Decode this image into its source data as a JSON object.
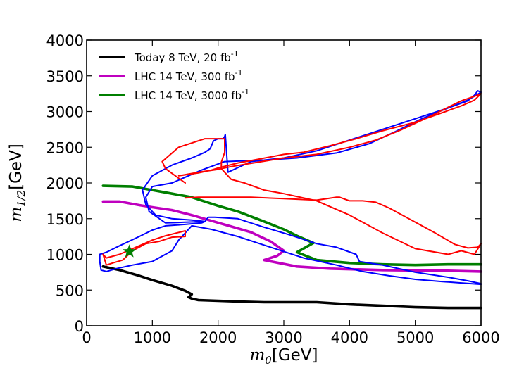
{
  "chart_data": {
    "type": "line",
    "title": "",
    "xlabel": {
      "symbol": "m",
      "subscript": "0",
      "unit": "[GeV]"
    },
    "ylabel": {
      "symbol": "m",
      "subscript": "1/2",
      "unit": "[GeV]"
    },
    "xlim": [
      0,
      6000
    ],
    "ylim": [
      0,
      4000
    ],
    "xticks": [
      0,
      1000,
      2000,
      3000,
      4000,
      5000,
      6000
    ],
    "yticks": [
      0,
      500,
      1000,
      1500,
      2000,
      2500,
      3000,
      3500,
      4000
    ],
    "grid": false,
    "legend_position": "top-left",
    "series": [
      {
        "name": "Today 8 TeV, 20 fb",
        "legend_text": "Today 8 TeV, 20 fb",
        "legend_sup": "-1",
        "color": "#000000",
        "x": [
          250,
          500,
          800,
          1000,
          1300,
          1500,
          1600,
          1550,
          1600,
          1700,
          2000,
          2300,
          2700,
          3500,
          4000,
          4500,
          5000,
          5500,
          6000
        ],
        "y": [
          830,
          780,
          700,
          640,
          560,
          490,
          440,
          400,
          380,
          360,
          350,
          340,
          330,
          330,
          300,
          280,
          260,
          250,
          250
        ]
      },
      {
        "name": "LHC 14 TeV, 300 fb",
        "legend_text": "LHC 14 TeV, 300 fb",
        "legend_sup": "-1",
        "color": "#bf00bf",
        "x": [
          250,
          500,
          800,
          1000,
          1300,
          1600,
          1900,
          2200,
          2500,
          2800,
          3000,
          2900,
          2800,
          2700,
          3200,
          3700,
          4500,
          5500,
          6000
        ],
        "y": [
          1740,
          1740,
          1690,
          1660,
          1620,
          1550,
          1470,
          1390,
          1310,
          1180,
          1050,
          980,
          950,
          920,
          830,
          800,
          780,
          770,
          760
        ]
      },
      {
        "name": "LHC 14 TeV, 3000 fb",
        "legend_text": "LHC 14 TeV, 3000 fb",
        "legend_sup": "-1",
        "color": "#007f00",
        "x": [
          250,
          700,
          1000,
          1300,
          1600,
          1800,
          2000,
          2300,
          2700,
          3000,
          3200,
          3450,
          3200,
          3500,
          4000,
          4500,
          5000,
          5500,
          6000
        ],
        "y": [
          1960,
          1950,
          1900,
          1850,
          1800,
          1740,
          1680,
          1600,
          1460,
          1350,
          1260,
          1160,
          1030,
          920,
          880,
          860,
          850,
          860,
          860
        ]
      },
      {
        "name": "blue contour",
        "color": "#0000ff",
        "x": [
          200,
          300,
          500,
          800,
          1000,
          1200,
          1500,
          1750,
          1800,
          1600,
          1300,
          1050,
          900,
          850,
          1000,
          1300,
          1600,
          1800,
          1880,
          1930,
          2000,
          2080,
          2100,
          2110,
          2150,
          2500,
          3000,
          3500,
          4000,
          4500,
          5000,
          5500,
          5800,
          5900,
          5950,
          6000,
          5800,
          5500,
          5100,
          4700,
          4300,
          3800,
          3200,
          2700,
          2100,
          1750,
          1300,
          1000,
          900,
          950,
          1200,
          1500,
          1800,
          1850,
          1950,
          2300,
          2700,
          3100,
          3500,
          3800,
          4100,
          4150,
          4500,
          5000,
          5500,
          5800,
          6000,
          6000,
          5700,
          5400,
          5000,
          4600,
          4200,
          3800,
          3300,
          2800,
          2300,
          1900,
          1600,
          1400,
          1300,
          1000,
          700,
          450,
          300,
          220,
          200,
          200
        ],
        "y": [
          1000,
          1030,
          1120,
          1250,
          1340,
          1400,
          1420,
          1440,
          1460,
          1480,
          1500,
          1550,
          1700,
          1900,
          2100,
          2250,
          2350,
          2430,
          2480,
          2590,
          2620,
          2620,
          2650,
          2680,
          2150,
          2300,
          2350,
          2450,
          2600,
          2750,
          2900,
          3050,
          3150,
          3230,
          3290,
          3270,
          3160,
          3050,
          2900,
          2720,
          2550,
          2420,
          2350,
          2320,
          2300,
          2180,
          2000,
          1950,
          1800,
          1600,
          1440,
          1450,
          1460,
          1520,
          1520,
          1500,
          1380,
          1270,
          1150,
          1100,
          1000,
          900,
          850,
          750,
          680,
          630,
          590,
          580,
          600,
          620,
          650,
          700,
          760,
          850,
          950,
          1100,
          1250,
          1350,
          1400,
          1200,
          1050,
          900,
          850,
          800,
          760,
          780,
          900,
          1000
        ]
      },
      {
        "name": "red contour upper",
        "color": "#ff0000",
        "x": [
          1500,
          1700,
          2000,
          2500,
          3000,
          3500,
          3800,
          3850,
          4000,
          4200,
          4400,
          4600,
          5000,
          5300,
          5600,
          5800,
          5950,
          6000,
          5900,
          5700,
          5500,
          5000,
          4500,
          4000,
          3500,
          3000,
          2700,
          2400,
          2200,
          2100,
          2050,
          2050,
          2100,
          2100,
          1800,
          1400,
          1150,
          1200,
          1500
        ],
        "y": [
          1790,
          1800,
          1800,
          1800,
          1780,
          1760,
          1800,
          1800,
          1750,
          1750,
          1730,
          1650,
          1450,
          1300,
          1140,
          1090,
          1100,
          1150,
          1000,
          1050,
          1000,
          1080,
          1300,
          1550,
          1750,
          1850,
          1900,
          2000,
          2050,
          2150,
          2200,
          2290,
          2430,
          2620,
          2620,
          2500,
          2300,
          2200,
          2000
        ]
      },
      {
        "name": "red contour inner",
        "color": "#ff0000",
        "x": [
          1400,
          1700,
          1900,
          2000,
          2300,
          2600,
          3000,
          3300,
          3700,
          4100,
          4500,
          5000,
          5400,
          5700,
          5900,
          6000,
          5950,
          5700,
          5500,
          5200,
          4800,
          4400,
          4000,
          3500,
          3000,
          2600,
          2200,
          2000,
          1700,
          1400
        ],
        "y": [
          2100,
          2140,
          2180,
          2210,
          2280,
          2330,
          2400,
          2430,
          2520,
          2620,
          2730,
          2850,
          2980,
          3080,
          3160,
          3250,
          3230,
          3150,
          3060,
          2920,
          2750,
          2600,
          2500,
          2400,
          2350,
          2290,
          2230,
          2190,
          2150,
          2100
        ]
      },
      {
        "name": "red contour lower",
        "color": "#ff0000",
        "x": [
          250,
          300,
          500,
          800,
          1000,
          1200,
          1500,
          1500,
          1300,
          1100,
          900,
          700,
          550,
          400,
          300,
          250
        ],
        "y": [
          1000,
          950,
          1000,
          1120,
          1200,
          1260,
          1330,
          1250,
          1240,
          1180,
          1150,
          1050,
          920,
          880,
          850,
          1000
        ]
      }
    ],
    "marker": {
      "shape": "star",
      "color": "#007f00",
      "x": 650,
      "y": 1040
    }
  }
}
